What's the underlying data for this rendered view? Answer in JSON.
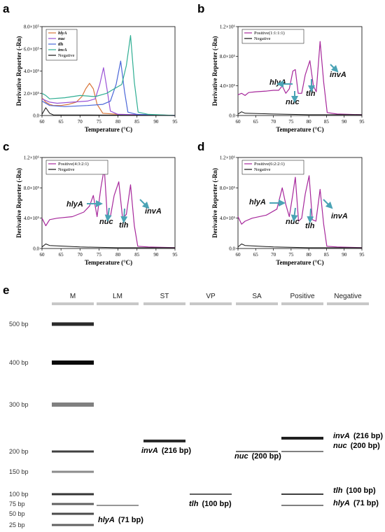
{
  "chart_data": [
    {
      "type": "line",
      "panel": "a",
      "xlabel": "Temperature (°C)",
      "ylabel": "Derivative Reporter (-Rn)",
      "xlim": [
        60,
        95
      ],
      "ylim": [
        0,
        8.0
      ],
      "x_ticks": [
        "60",
        "65",
        "70",
        "75",
        "80",
        "85",
        "90",
        "95"
      ],
      "y_ticks": [
        "0.0",
        "2.0×10⁵",
        "4.0×10⁵",
        "6.0×10⁵",
        "8.0×10⁵"
      ],
      "legend_position": "top-left",
      "series": [
        {
          "name": "hlyA",
          "color": "#d9763a",
          "points": [
            [
              60,
              1.6
            ],
            [
              61,
              1.2
            ],
            [
              62,
              1.0
            ],
            [
              63,
              0.9
            ],
            [
              65,
              0.9
            ],
            [
              67,
              1.0
            ],
            [
              69,
              1.2
            ],
            [
              70.5,
              1.7
            ],
            [
              71.5,
              2.4
            ],
            [
              72.5,
              2.9
            ],
            [
              73.5,
              2.4
            ],
            [
              74.5,
              1.0
            ],
            [
              76,
              0.2
            ],
            [
              80,
              0.1
            ],
            [
              95,
              0.0
            ]
          ]
        },
        {
          "name": "nuc",
          "color": "#9a52d6",
          "points": [
            [
              60,
              1.5
            ],
            [
              62,
              1.2
            ],
            [
              64,
              1.1
            ],
            [
              68,
              1.2
            ],
            [
              72,
              1.3
            ],
            [
              74,
              1.5
            ],
            [
              75.2,
              2.8
            ],
            [
              76.2,
              4.3
            ],
            [
              77.1,
              2.4
            ],
            [
              78,
              0.4
            ],
            [
              80,
              0.1
            ],
            [
              95,
              0.0
            ]
          ]
        },
        {
          "name": "tlh",
          "color": "#4a66d8",
          "points": [
            [
              60,
              1.3
            ],
            [
              62,
              0.9
            ],
            [
              66,
              0.8
            ],
            [
              72,
              0.9
            ],
            [
              76,
              1.0
            ],
            [
              78,
              1.3
            ],
            [
              79.5,
              2.8
            ],
            [
              80.7,
              4.9
            ],
            [
              81.7,
              2.2
            ],
            [
              82.6,
              0.3
            ],
            [
              85,
              0.1
            ],
            [
              95,
              0.0
            ]
          ]
        },
        {
          "name": "invA",
          "color": "#2fae93",
          "points": [
            [
              60,
              2.0
            ],
            [
              61,
              1.8
            ],
            [
              62,
              1.5
            ],
            [
              66,
              1.6
            ],
            [
              70,
              1.8
            ],
            [
              74,
              1.7
            ],
            [
              77,
              2.0
            ],
            [
              79,
              2.4
            ],
            [
              81,
              2.8
            ],
            [
              82.2,
              4.5
            ],
            [
              83.3,
              7.2
            ],
            [
              84.3,
              3.0
            ],
            [
              85.3,
              0.3
            ],
            [
              88,
              0.1
            ],
            [
              95,
              0.0
            ]
          ]
        },
        {
          "name": "Negative",
          "color": "#111111",
          "points": [
            [
              60,
              0.1
            ],
            [
              61,
              0.7
            ],
            [
              62,
              0.2
            ],
            [
              63,
              0.05
            ],
            [
              70,
              0.05
            ],
            [
              95,
              0.0
            ]
          ]
        }
      ]
    },
    {
      "type": "line",
      "panel": "b",
      "xlabel": "Temperature (°C)",
      "ylabel": "Derivative Reporter (-Rn)",
      "xlim": [
        60,
        95
      ],
      "ylim": [
        0,
        1.2
      ],
      "x_ticks": [
        "60",
        "65",
        "70",
        "75",
        "80",
        "85",
        "90",
        "95"
      ],
      "y_ticks": [
        "0.0",
        "4.0×10⁵",
        "8.0×10⁵",
        "1.2×10⁶"
      ],
      "legend_position": "top-left",
      "series": [
        {
          "name": "Positive(1:1:1:1)",
          "color": "#a6279b",
          "points": [
            [
              60,
              0.28
            ],
            [
              61,
              0.3
            ],
            [
              62,
              0.27
            ],
            [
              63,
              0.31
            ],
            [
              65,
              0.32
            ],
            [
              68,
              0.33
            ],
            [
              70,
              0.34
            ],
            [
              71.5,
              0.34
            ],
            [
              72.5,
              0.4
            ],
            [
              73.5,
              0.3
            ],
            [
              74.5,
              0.36
            ],
            [
              75.5,
              0.6
            ],
            [
              76.2,
              0.62
            ],
            [
              77,
              0.3
            ],
            [
              78,
              0.3
            ],
            [
              79,
              0.55
            ],
            [
              80.3,
              0.74
            ],
            [
              81.3,
              0.4
            ],
            [
              82.1,
              0.32
            ],
            [
              83.2,
              1.0
            ],
            [
              84.2,
              0.45
            ],
            [
              85.2,
              0.04
            ],
            [
              88,
              0.02
            ],
            [
              95,
              0.01
            ]
          ]
        },
        {
          "name": "Negative",
          "color": "#111111",
          "points": [
            [
              60,
              0.02
            ],
            [
              61,
              0.05
            ],
            [
              62,
              0.03
            ],
            [
              70,
              0.02
            ],
            [
              80,
              0.01
            ],
            [
              95,
              0.01
            ]
          ]
        }
      ],
      "annotations": [
        {
          "text": "hlyA",
          "arrow": "left"
        },
        {
          "text": "nuc",
          "arrow": "down"
        },
        {
          "text": "tlh",
          "arrow": "down"
        },
        {
          "text": "invA",
          "arrow": "up-left"
        }
      ]
    },
    {
      "type": "line",
      "panel": "c",
      "xlabel": "Temperature (°C)",
      "ylabel": "Derivative Reporter (-Rn)",
      "xlim": [
        60,
        95
      ],
      "ylim": [
        0,
        1.2
      ],
      "x_ticks": [
        "60",
        "65",
        "70",
        "75",
        "80",
        "85",
        "90",
        "95"
      ],
      "y_ticks": [
        "0.0",
        "4.0×10⁵",
        "8.0×10⁵",
        "1.2×10⁶"
      ],
      "legend_position": "top-left",
      "series": [
        {
          "name": "Positive(4:3:2:1)",
          "color": "#a6279b",
          "points": [
            [
              60,
              0.4
            ],
            [
              61,
              0.3
            ],
            [
              62,
              0.38
            ],
            [
              64,
              0.4
            ],
            [
              68,
              0.42
            ],
            [
              71,
              0.48
            ],
            [
              72.5,
              0.56
            ],
            [
              73.5,
              0.7
            ],
            [
              74.5,
              0.42
            ],
            [
              75.5,
              0.8
            ],
            [
              76.4,
              1.06
            ],
            [
              77.2,
              0.4
            ],
            [
              78,
              0.42
            ],
            [
              79,
              0.7
            ],
            [
              80.2,
              0.88
            ],
            [
              81.2,
              0.4
            ],
            [
              82.2,
              0.45
            ],
            [
              83.3,
              0.84
            ],
            [
              84.3,
              0.3
            ],
            [
              85.2,
              0.03
            ],
            [
              88,
              0.02
            ],
            [
              95,
              0.01
            ]
          ]
        },
        {
          "name": "Negative",
          "color": "#111111",
          "points": [
            [
              60,
              0.02
            ],
            [
              61,
              0.06
            ],
            [
              62,
              0.04
            ],
            [
              70,
              0.02
            ],
            [
              80,
              0.01
            ],
            [
              95,
              0.01
            ]
          ]
        }
      ],
      "annotations": [
        {
          "text": "hlyA",
          "arrow": "right"
        },
        {
          "text": "nuc",
          "arrow": "down"
        },
        {
          "text": "tlh",
          "arrow": "down"
        },
        {
          "text": "invA",
          "arrow": "down-right"
        }
      ]
    },
    {
      "type": "line",
      "panel": "d",
      "xlabel": "Temperature (°C)",
      "ylabel": "Derivative Reporter (-Rn)",
      "xlim": [
        60,
        95
      ],
      "ylim": [
        0,
        1.2
      ],
      "x_ticks": [
        "60",
        "65",
        "70",
        "75",
        "80",
        "85",
        "90",
        "95"
      ],
      "y_ticks": [
        "0.0",
        "4.0×10⁵",
        "8.0×10⁵",
        "1.2×10⁶"
      ],
      "legend_position": "top-left",
      "series": [
        {
          "name": "Positive(6:2:2:1)",
          "color": "#a6279b",
          "points": [
            [
              60,
              0.42
            ],
            [
              61,
              0.32
            ],
            [
              62,
              0.36
            ],
            [
              64,
              0.4
            ],
            [
              68,
              0.44
            ],
            [
              71,
              0.52
            ],
            [
              72.5,
              0.8
            ],
            [
              73.5,
              0.58
            ],
            [
              74.5,
              0.42
            ],
            [
              75.5,
              0.72
            ],
            [
              76.2,
              0.94
            ],
            [
              77.1,
              0.36
            ],
            [
              78,
              0.4
            ],
            [
              79,
              0.72
            ],
            [
              80.1,
              0.96
            ],
            [
              81,
              0.38
            ],
            [
              82,
              0.36
            ],
            [
              83.2,
              0.78
            ],
            [
              84.2,
              0.32
            ],
            [
              85.1,
              0.03
            ],
            [
              88,
              0.02
            ],
            [
              95,
              0.01
            ]
          ]
        },
        {
          "name": "Negative",
          "color": "#111111",
          "points": [
            [
              60,
              0.02
            ],
            [
              61,
              0.06
            ],
            [
              62,
              0.04
            ],
            [
              70,
              0.02
            ],
            [
              80,
              0.01
            ],
            [
              95,
              0.01
            ]
          ]
        }
      ],
      "annotations": [
        {
          "text": "hlyA",
          "arrow": "right"
        },
        {
          "text": "nuc",
          "arrow": "down"
        },
        {
          "text": "tlh",
          "arrow": "down"
        },
        {
          "text": "invA",
          "arrow": "down-right"
        }
      ]
    },
    {
      "type": "gel",
      "panel": "e",
      "lanes": [
        "M",
        "LM",
        "ST",
        "VP",
        "SA",
        "Positive",
        "Negative"
      ],
      "ladder_bp": [
        {
          "label": "500 bp",
          "bp": 500,
          "intensity": 0.85
        },
        {
          "label": "400 bp",
          "bp": 400,
          "intensity": 1.0
        },
        {
          "label": "300 bp",
          "bp": 300,
          "intensity": 0.45
        },
        {
          "label": "200 bp",
          "bp": 200,
          "intensity": 0.75
        },
        {
          "label": "150 bp",
          "bp": 150,
          "intensity": 0.4
        },
        {
          "label": "100 bp",
          "bp": 100,
          "intensity": 0.8
        },
        {
          "label": "75 bp",
          "bp": 75,
          "intensity": 0.6
        },
        {
          "label": "50 bp",
          "bp": 50,
          "intensity": 0.7
        },
        {
          "label": "25 bp",
          "bp": 25,
          "intensity": 0.6
        }
      ],
      "bands": [
        {
          "lane": "LM",
          "bp": 71,
          "intensity": 0.35,
          "label": "hlyA",
          "size": "(71 bp)"
        },
        {
          "lane": "ST",
          "bp": 216,
          "intensity": 0.85,
          "label": "invA",
          "size": "(216 bp)"
        },
        {
          "lane": "VP",
          "bp": 100,
          "intensity": 0.6,
          "label": "tlh",
          "size": "(100 bp)"
        },
        {
          "lane": "SA",
          "bp": 200,
          "intensity": 0.55,
          "label": "nuc",
          "size": "(200 bp)"
        },
        {
          "lane": "Positive",
          "bp": 216,
          "intensity": 0.9,
          "label": "invA",
          "size": "(216 bp)"
        },
        {
          "lane": "Positive",
          "bp": 200,
          "intensity": 0.45,
          "label": "nuc",
          "size": "(200 bp)"
        },
        {
          "lane": "Positive",
          "bp": 100,
          "intensity": 0.75,
          "label": "tlh",
          "size": "(100 bp)"
        },
        {
          "lane": "Positive",
          "bp": 71,
          "intensity": 0.45,
          "label": "hlyA",
          "size": "(71 bp)"
        }
      ]
    }
  ],
  "panel_letters": [
    "a",
    "b",
    "c",
    "d",
    "e"
  ]
}
